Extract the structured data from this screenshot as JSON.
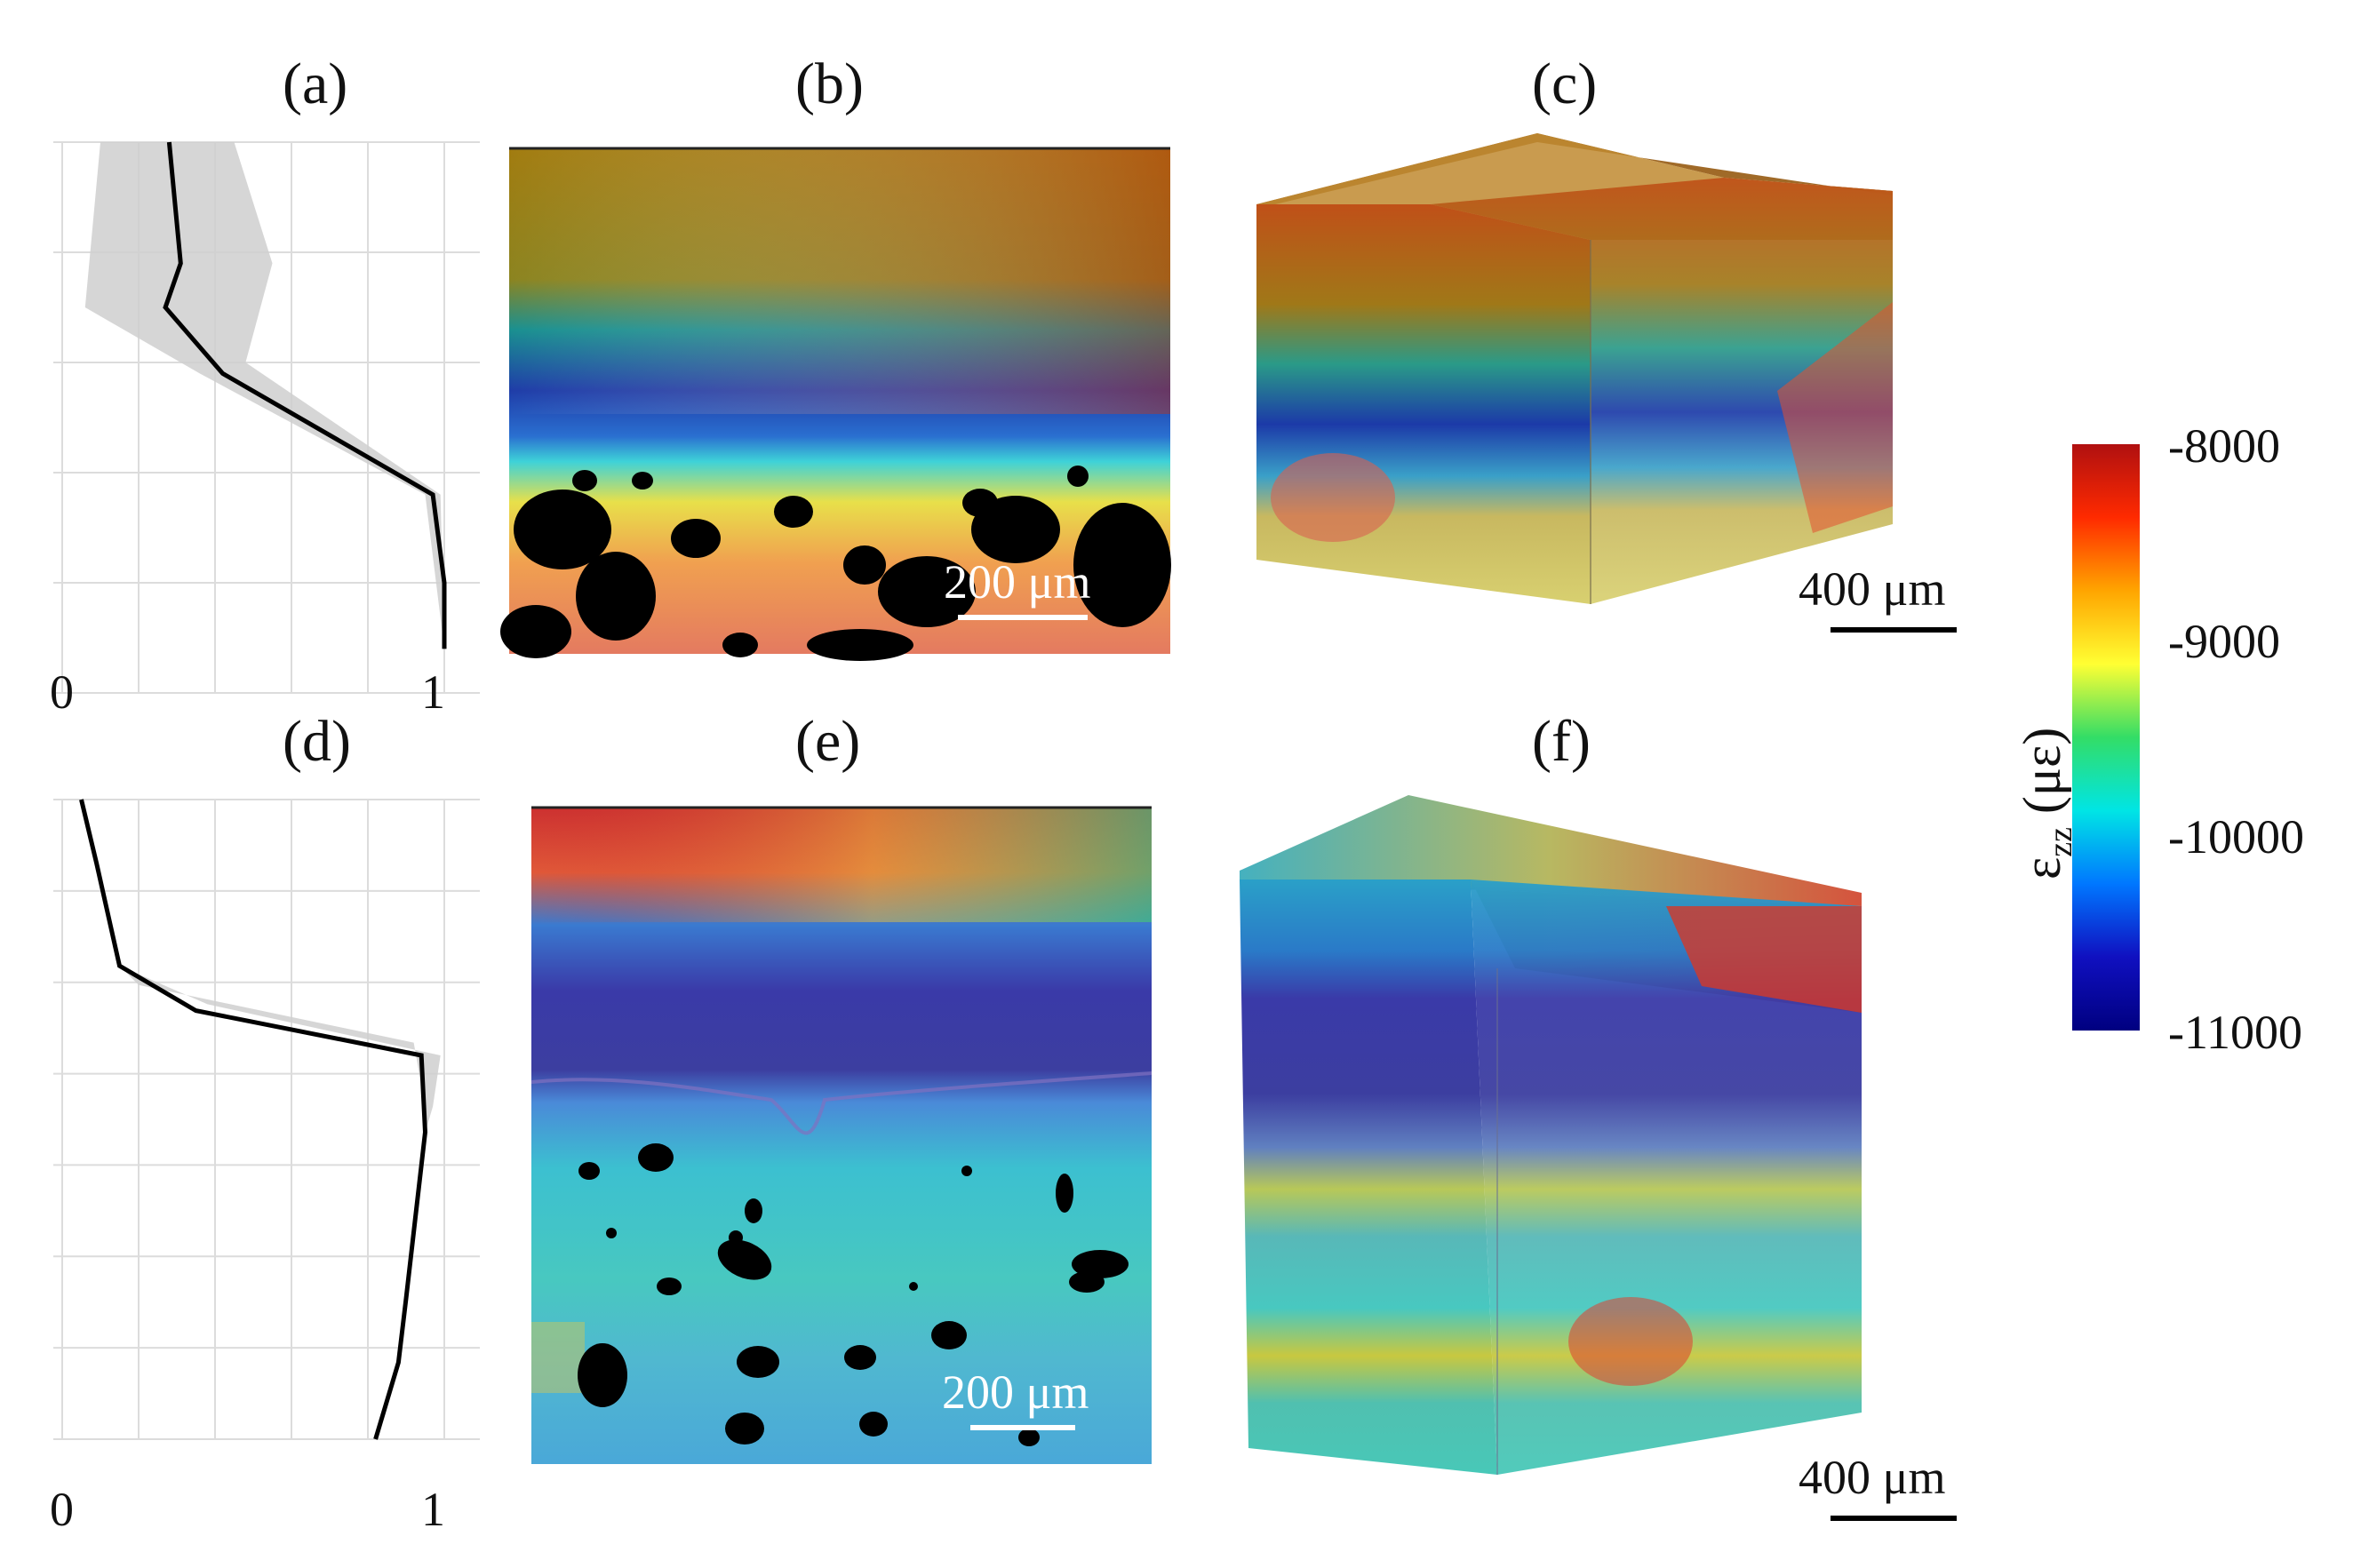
{
  "panels": {
    "a": "(a)",
    "b": "(b)",
    "c": "(c)",
    "d": "(d)",
    "e": "(e)",
    "f": "(f)"
  },
  "scale_bars": {
    "b": "200 μm",
    "c": "400 μm",
    "e": "200 μm",
    "f": "400 μm"
  },
  "colorbar": {
    "label_main": "ε",
    "label_sub": "zz",
    "label_unit": "(με)",
    "ticks": [
      "-8000",
      "-9000",
      "-10000",
      "-11000"
    ],
    "colors": [
      "#b01010",
      "#ff2a00",
      "#ffa500",
      "#ffff33",
      "#33dd66",
      "#00e5e5",
      "#0077ff",
      "#1010c0",
      "#000080"
    ]
  },
  "chart_data": [
    {
      "type": "line",
      "panel": "a",
      "xlim": [
        0,
        1
      ],
      "x_ticks": [
        "0",
        "1"
      ],
      "y_range": [
        0,
        1
      ],
      "series": [
        {
          "values": [
            [
              0.28,
              1.0
            ],
            [
              0.31,
              0.78
            ],
            [
              0.27,
              0.7
            ],
            [
              0.42,
              0.58
            ],
            [
              0.97,
              0.36
            ],
            [
              1.0,
              0.2
            ],
            [
              1.0,
              0.08
            ]
          ]
        }
      ],
      "band_lower": [
        [
          0.1,
          1.0
        ],
        [
          0.06,
          0.7
        ],
        [
          0.36,
          0.58
        ],
        [
          0.95,
          0.36
        ],
        [
          1.0,
          0.08
        ]
      ],
      "band_upper": [
        [
          0.45,
          1.0
        ],
        [
          0.55,
          0.78
        ],
        [
          0.48,
          0.6
        ],
        [
          0.99,
          0.36
        ],
        [
          1.0,
          0.08
        ]
      ]
    },
    {
      "type": "line",
      "panel": "d",
      "xlim": [
        0,
        1
      ],
      "x_ticks": [
        "0",
        "1"
      ],
      "y_range": [
        0,
        1
      ],
      "series": [
        {
          "values": [
            [
              0.05,
              1.0
            ],
            [
              0.09,
              0.9
            ],
            [
              0.15,
              0.74
            ],
            [
              0.35,
              0.67
            ],
            [
              0.94,
              0.6
            ],
            [
              0.95,
              0.48
            ],
            [
              0.9,
              0.22
            ],
            [
              0.88,
              0.12
            ],
            [
              0.82,
              0.0
            ]
          ]
        }
      ],
      "band_lower": [
        [
          0.15,
          0.74
        ],
        [
          0.2,
          0.71
        ],
        [
          0.92,
          0.62
        ],
        [
          0.95,
          0.52
        ],
        [
          0.95,
          0.48
        ]
      ],
      "band_upper": [
        [
          0.15,
          0.74
        ],
        [
          0.38,
          0.68
        ],
        [
          0.99,
          0.6
        ],
        [
          0.97,
          0.52
        ],
        [
          0.95,
          0.48
        ]
      ]
    }
  ]
}
